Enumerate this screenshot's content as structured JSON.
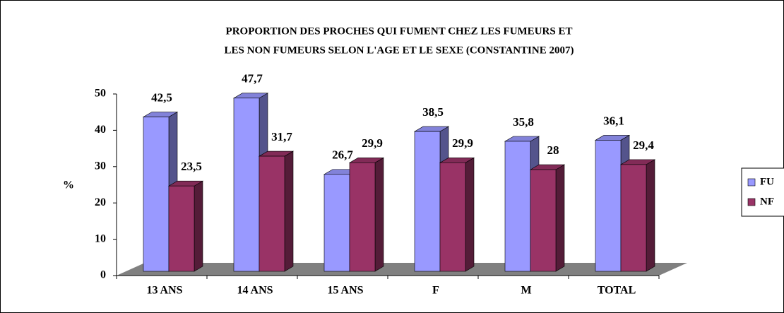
{
  "chart_data": {
    "type": "bar3d",
    "title": [
      "PROPORTION DES PROCHES QUI FUMENT CHEZ LES FUMEURS ET",
      "LES NON FUMEURS SELON L'AGE ET LE SEXE (CONSTANTINE 2007)"
    ],
    "ylabel": "%",
    "categories": [
      "13 ANS",
      "14 ANS",
      "15 ANS",
      "F",
      "M",
      "TOTAL"
    ],
    "series": [
      {
        "name": "FU",
        "color": "#9999ff",
        "values": [
          42.5,
          47.7,
          26.7,
          38.5,
          35.8,
          36.1
        ],
        "value_labels": [
          "42,5",
          "47,7",
          "26,7",
          "38,5",
          "35,8",
          "36,1"
        ]
      },
      {
        "name": "NF",
        "color": "#993366",
        "values": [
          23.5,
          31.7,
          29.9,
          29.9,
          28,
          29.4
        ],
        "value_labels": [
          "23,5",
          "31,7",
          "29,9",
          "29,9",
          "28",
          "29,4"
        ]
      }
    ],
    "ylim": [
      0,
      50
    ],
    "yticks": [
      0,
      10,
      20,
      30,
      40,
      50
    ],
    "legend": "right"
  }
}
